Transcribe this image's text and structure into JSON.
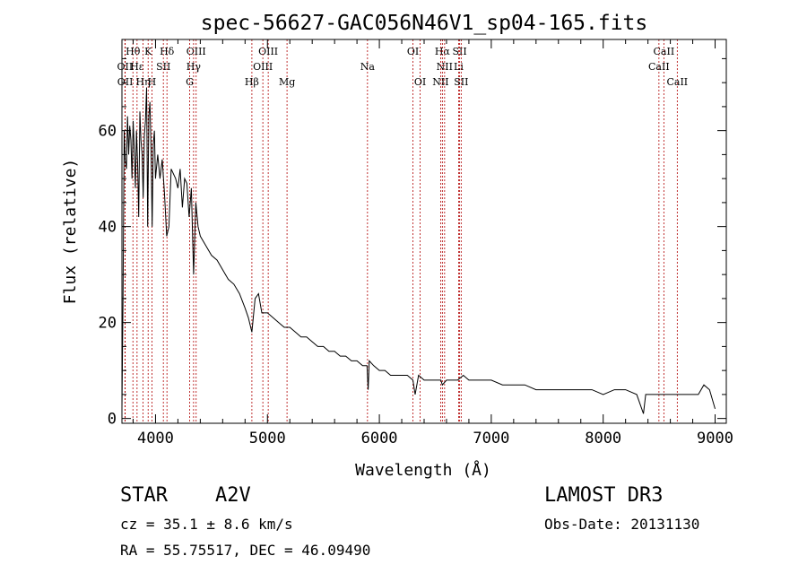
{
  "chart_data": {
    "type": "line",
    "title": "spec-56627-GAC056N46V1_sp04-165.fits",
    "xlabel": "Wavelength (Å)",
    "ylabel": "Flux (relative)",
    "xlim": [
      3700,
      9100
    ],
    "ylim": [
      -1,
      79
    ],
    "xticks": [
      4000,
      5000,
      6000,
      7000,
      8000,
      9000
    ],
    "yticks": [
      0,
      20,
      40,
      60
    ],
    "spectrum": {
      "x": [
        3700,
        3710,
        3720,
        3730,
        3740,
        3750,
        3760,
        3770,
        3780,
        3790,
        3800,
        3810,
        3820,
        3830,
        3840,
        3850,
        3860,
        3870,
        3880,
        3890,
        3900,
        3910,
        3920,
        3930,
        3940,
        3950,
        3960,
        3970,
        3980,
        3990,
        4000,
        4020,
        4040,
        4060,
        4080,
        4100,
        4120,
        4140,
        4160,
        4180,
        4200,
        4220,
        4240,
        4260,
        4280,
        4300,
        4320,
        4340,
        4360,
        4380,
        4400,
        4450,
        4500,
        4550,
        4600,
        4650,
        4700,
        4750,
        4800,
        4830,
        4861,
        4890,
        4920,
        4950,
        5000,
        5050,
        5100,
        5150,
        5200,
        5250,
        5300,
        5350,
        5400,
        5450,
        5500,
        5550,
        5600,
        5650,
        5700,
        5750,
        5800,
        5850,
        5890,
        5900,
        5910,
        5950,
        6000,
        6050,
        6100,
        6150,
        6200,
        6250,
        6300,
        6320,
        6350,
        6400,
        6450,
        6500,
        6550,
        6563,
        6600,
        6650,
        6700,
        6750,
        6800,
        6850,
        6900,
        6950,
        7000,
        7100,
        7200,
        7300,
        7400,
        7500,
        7600,
        7700,
        7800,
        7900,
        8000,
        8100,
        8200,
        8300,
        8360,
        8380,
        8400,
        8500,
        8600,
        8700,
        8800,
        8850,
        8900,
        8950,
        9000
      ],
      "y": [
        2,
        25,
        60,
        54,
        52,
        63,
        55,
        61,
        58,
        50,
        62,
        56,
        48,
        60,
        53,
        42,
        64,
        58,
        55,
        46,
        59,
        62,
        69,
        40,
        63,
        66,
        56,
        40,
        57,
        60,
        50,
        55,
        50,
        54,
        47,
        38,
        40,
        52,
        51,
        50,
        48,
        52,
        44,
        50,
        49,
        42,
        48,
        30,
        45,
        40,
        38,
        36,
        34,
        33,
        31,
        29,
        28,
        26,
        23,
        21,
        18,
        25,
        26,
        22,
        22,
        21,
        20,
        19,
        19,
        18,
        17,
        17,
        16,
        15,
        15,
        14,
        14,
        13,
        13,
        12,
        12,
        11,
        11,
        6,
        12,
        11,
        10,
        10,
        9,
        9,
        9,
        9,
        8,
        5,
        9,
        8,
        8,
        8,
        8,
        7,
        8,
        8,
        8,
        9,
        8,
        8,
        8,
        8,
        8,
        7,
        7,
        7,
        6,
        6,
        6,
        6,
        6,
        6,
        5,
        6,
        6,
        5,
        1,
        5,
        5,
        5,
        5,
        5,
        5,
        5,
        7,
        6,
        2
      ]
    },
    "lines": [
      {
        "label": "Hθ",
        "wave": 3798,
        "row": 0
      },
      {
        "label": "Hε",
        "wave": 3835,
        "row": 1
      },
      {
        "label": "K",
        "wave": 3934,
        "row": 0
      },
      {
        "label": "H",
        "wave": 3968,
        "row": 2
      },
      {
        "label": "OII",
        "wave": 3727,
        "row": 1
      },
      {
        "label": "OII",
        "wave": 3729,
        "row": 2
      },
      {
        "label": "Hη",
        "wave": 3889,
        "row": 2
      },
      {
        "label": "SII",
        "wave": 4070,
        "row": 1
      },
      {
        "label": "Hδ",
        "wave": 4102,
        "row": 0
      },
      {
        "label": "OIII",
        "wave": 4363,
        "row": 0
      },
      {
        "label": "Hγ",
        "wave": 4340,
        "row": 1
      },
      {
        "label": "G",
        "wave": 4305,
        "row": 2
      },
      {
        "label": "OIII",
        "wave": 5007,
        "row": 0
      },
      {
        "label": "OIII",
        "wave": 4959,
        "row": 1
      },
      {
        "label": "Hβ",
        "wave": 4861,
        "row": 2
      },
      {
        "label": "Mg",
        "wave": 5175,
        "row": 2
      },
      {
        "label": "Na",
        "wave": 5894,
        "row": 1
      },
      {
        "label": "OI",
        "wave": 6300,
        "row": 0
      },
      {
        "label": "OI",
        "wave": 6364,
        "row": 2
      },
      {
        "label": "Hα",
        "wave": 6563,
        "row": 0
      },
      {
        "label": "NII",
        "wave": 6583,
        "row": 1
      },
      {
        "label": "NII",
        "wave": 6548,
        "row": 2
      },
      {
        "label": "SII",
        "wave": 6717,
        "row": 0
      },
      {
        "label": "Li",
        "wave": 6708,
        "row": 1
      },
      {
        "label": "SII",
        "wave": 6731,
        "row": 2
      },
      {
        "label": "CaII",
        "wave": 8542,
        "row": 0
      },
      {
        "label": "CaII",
        "wave": 8498,
        "row": 1
      },
      {
        "label": "CaII",
        "wave": 8662,
        "row": 2
      }
    ]
  },
  "info": {
    "class_label": "STAR",
    "subclass": "A2V",
    "survey": "LAMOST DR3",
    "cz": "cz = 35.1 ± 8.6 km/s",
    "obs_date": "Obs-Date: 20131130",
    "coords": "RA =  55.75517, DEC =  46.09490"
  }
}
